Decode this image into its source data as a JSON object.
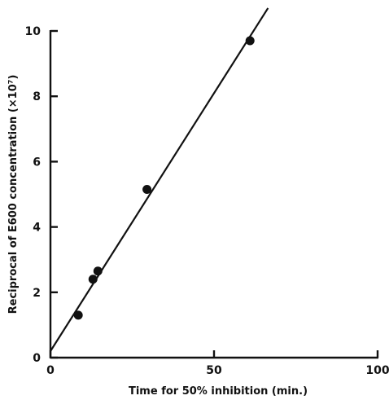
{
  "chart_data": {
    "type": "scatter",
    "title": "",
    "xlabel": "Time for 50% inhibition (min.)",
    "ylabel": "Reciprocal of E600 concentration (×10⁷)",
    "xlim": [
      0,
      100
    ],
    "ylim": [
      0,
      10
    ],
    "x_ticks": [
      0,
      50,
      100
    ],
    "y_ticks": [
      0,
      2,
      4,
      6,
      8,
      10
    ],
    "grid": false,
    "legend": "none",
    "series": [
      {
        "points": [
          {
            "x": 8.5,
            "y": 1.3
          },
          {
            "x": 13,
            "y": 2.4
          },
          {
            "x": 14.5,
            "y": 2.65
          },
          {
            "x": 29.5,
            "y": 5.15
          },
          {
            "x": 61,
            "y": 9.7
          }
        ]
      }
    ],
    "fit_line": {
      "x_start": 0,
      "y_start": 0.2,
      "x_end": 66.5,
      "y_end": 10.7
    },
    "colors": {
      "marks": "#111111",
      "axis": "#111111"
    }
  }
}
